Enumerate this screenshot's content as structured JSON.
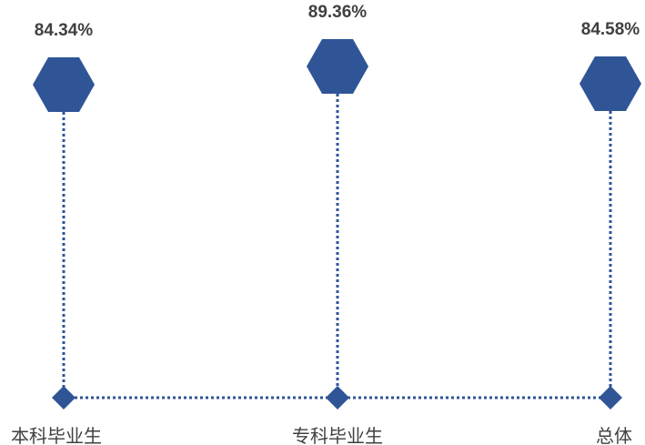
{
  "chart_data": {
    "type": "dot-lollipop",
    "categories": [
      "本科毕业生",
      "专科毕业生",
      "总体"
    ],
    "values": [
      "84.34%",
      "89.36%",
      "84.58%"
    ],
    "numeric_values": [
      84.34,
      89.36,
      84.58
    ],
    "ylim": [
      72,
      90
    ],
    "marker_color": "#2F5597",
    "text_color": "#404040"
  }
}
